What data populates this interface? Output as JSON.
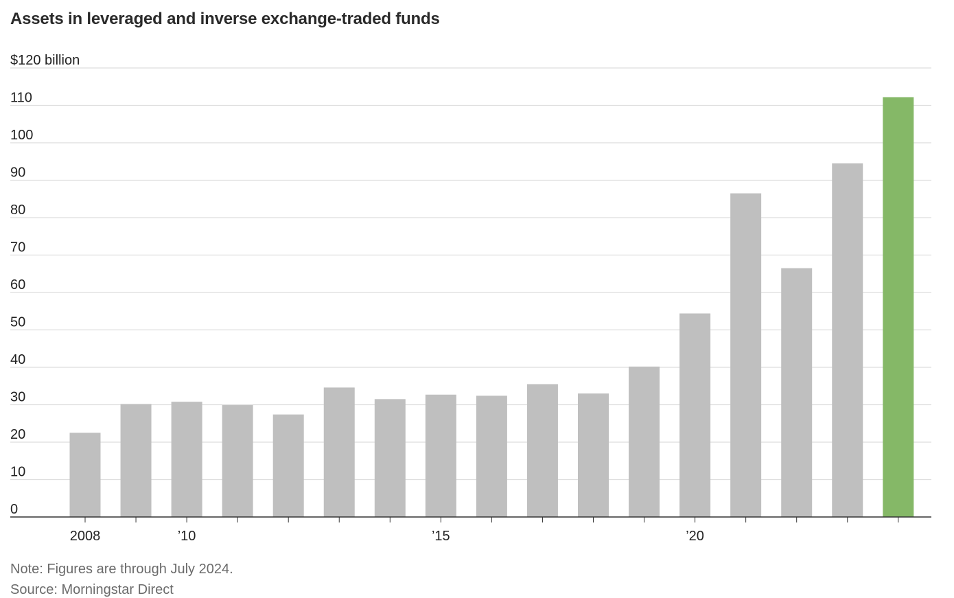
{
  "chart_data": {
    "type": "bar",
    "title": "Assets in leveraged and inverse exchange-traded funds",
    "ylabel": "",
    "xlabel": "",
    "ylim": [
      0,
      120
    ],
    "yticks": [
      0,
      10,
      20,
      30,
      40,
      50,
      60,
      70,
      80,
      90,
      100,
      110,
      120
    ],
    "ytick_labels": [
      "0",
      "10",
      "20",
      "30",
      "40",
      "50",
      "60",
      "70",
      "80",
      "90",
      "100",
      "110",
      "$120 billion"
    ],
    "categories": [
      2008,
      2009,
      2010,
      2011,
      2012,
      2013,
      2014,
      2015,
      2016,
      2017,
      2018,
      2019,
      2020,
      2021,
      2022,
      2023,
      2024
    ],
    "values": [
      22.5,
      30.2,
      30.8,
      29.9,
      27.4,
      34.6,
      31.5,
      32.7,
      32.4,
      35.5,
      33.0,
      40.2,
      54.4,
      86.5,
      66.5,
      94.5,
      112.2
    ],
    "xtick_labels": [
      {
        "category": 2008,
        "label": "2008"
      },
      {
        "category": 2010,
        "label": "’10"
      },
      {
        "category": 2015,
        "label": "’15"
      },
      {
        "category": 2020,
        "label": "’20"
      }
    ],
    "colors": {
      "bar": "#bfbfbf",
      "highlight_bar": "#85b867",
      "highlight_category": 2024,
      "gridline": "#dedede",
      "axis": "#333333"
    },
    "grid": true
  },
  "footer": {
    "note": "Note: Figures are through July 2024.",
    "source": "Source: Morningstar Direct"
  }
}
